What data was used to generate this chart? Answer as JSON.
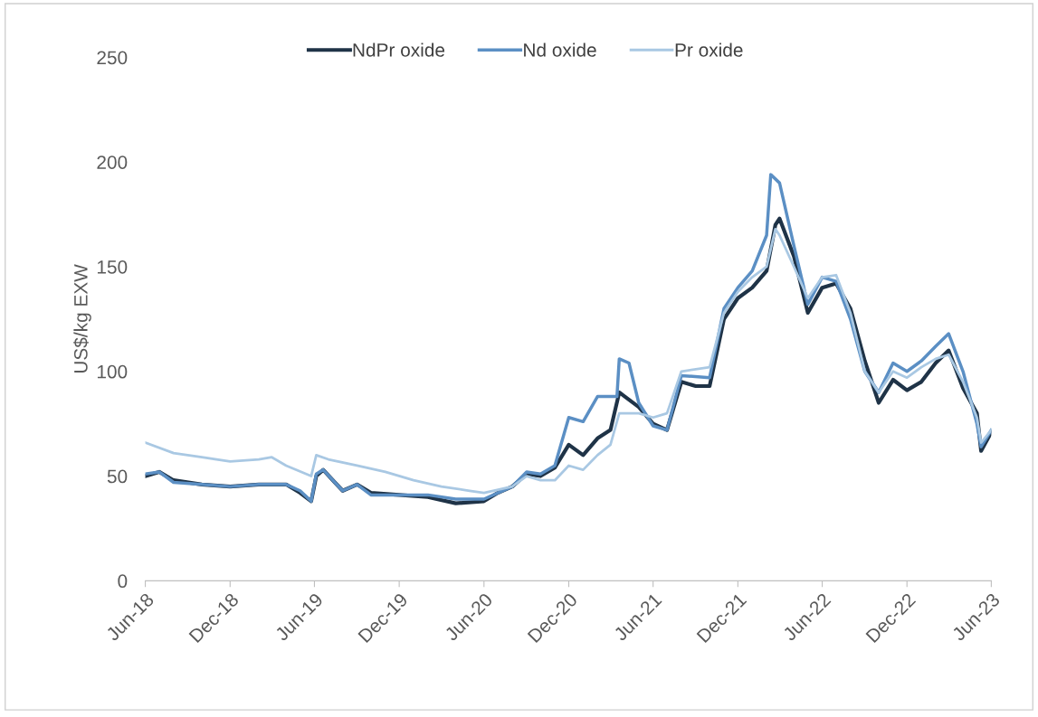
{
  "chart_data": {
    "type": "line",
    "ylabel": "US$/kg EXW",
    "xlim": [
      "2018-06",
      "2023-06"
    ],
    "xticks": [
      {
        "value": "2018-06",
        "label": "Jun-18"
      },
      {
        "value": "2018-12",
        "label": "Dec-18"
      },
      {
        "value": "2019-06",
        "label": "Jun-19"
      },
      {
        "value": "2019-12",
        "label": "Dec-19"
      },
      {
        "value": "2020-06",
        "label": "Jun-20"
      },
      {
        "value": "2020-12",
        "label": "Dec-20"
      },
      {
        "value": "2021-06",
        "label": "Jun-21"
      },
      {
        "value": "2021-12",
        "label": "Dec-21"
      },
      {
        "value": "2022-06",
        "label": "Jun-22"
      },
      {
        "value": "2022-12",
        "label": "Dec-22"
      },
      {
        "value": "2023-06",
        "label": "Jun-23"
      }
    ],
    "ylim": [
      0,
      250
    ],
    "yticks": [
      0,
      50,
      100,
      150,
      200,
      250
    ],
    "grid": false,
    "legend": "top",
    "line_style": "solid",
    "marker": "none",
    "series": [
      {
        "name": "NdPr oxide",
        "color": "#1f3347",
        "x": [
          "2018-06-01",
          "2018-07-01",
          "2018-08-01",
          "2018-10-01",
          "2018-12-01",
          "2019-02-01",
          "2019-04-01",
          "2019-05-01",
          "2019-05-25",
          "2019-06-05",
          "2019-06-20",
          "2019-07-15",
          "2019-08-01",
          "2019-09-01",
          "2019-10-01",
          "2019-12-01",
          "2020-02-01",
          "2020-04-01",
          "2020-06-01",
          "2020-07-01",
          "2020-08-01",
          "2020-09-01",
          "2020-10-01",
          "2020-11-01",
          "2020-12-01",
          "2021-01-01",
          "2021-02-01",
          "2021-03-01",
          "2021-03-20",
          "2021-04-01",
          "2021-05-01",
          "2021-06-01",
          "2021-07-01",
          "2021-08-01",
          "2021-09-01",
          "2021-10-01",
          "2021-11-01",
          "2021-12-01",
          "2022-01-01",
          "2022-02-01",
          "2022-02-20",
          "2022-03-01",
          "2022-04-01",
          "2022-05-01",
          "2022-06-01",
          "2022-07-01",
          "2022-08-01",
          "2022-09-01",
          "2022-10-01",
          "2022-11-01",
          "2022-12-01",
          "2023-01-01",
          "2023-02-01",
          "2023-03-01",
          "2023-04-01",
          "2023-05-01",
          "2023-05-10",
          "2023-06-01"
        ],
        "values": [
          50,
          52,
          48,
          46,
          45,
          46,
          46,
          42,
          38,
          50,
          53,
          47,
          43,
          46,
          42,
          41,
          40,
          37,
          38,
          42,
          45,
          51,
          50,
          54,
          65,
          60,
          68,
          72,
          90,
          88,
          83,
          75,
          72,
          95,
          93,
          93,
          125,
          135,
          140,
          148,
          170,
          173,
          155,
          128,
          140,
          142,
          130,
          105,
          85,
          96,
          91,
          95,
          104,
          110,
          92,
          80,
          62,
          71
        ]
      },
      {
        "name": "Nd oxide",
        "color": "#5b8fc4",
        "x": [
          "2018-06-01",
          "2018-07-01",
          "2018-08-01",
          "2018-10-01",
          "2018-12-01",
          "2019-02-01",
          "2019-04-01",
          "2019-05-01",
          "2019-05-25",
          "2019-06-05",
          "2019-06-20",
          "2019-07-15",
          "2019-08-01",
          "2019-09-01",
          "2019-10-01",
          "2019-12-01",
          "2020-02-01",
          "2020-04-01",
          "2020-06-01",
          "2020-07-01",
          "2020-08-01",
          "2020-09-01",
          "2020-10-01",
          "2020-11-01",
          "2020-12-01",
          "2021-01-01",
          "2021-02-01",
          "2021-03-15",
          "2021-03-20",
          "2021-04-10",
          "2021-05-01",
          "2021-06-01",
          "2021-07-01",
          "2021-08-01",
          "2021-10-01",
          "2021-11-01",
          "2021-12-01",
          "2022-01-01",
          "2022-02-01",
          "2022-02-10",
          "2022-03-01",
          "2022-04-01",
          "2022-05-01",
          "2022-06-01",
          "2022-07-01",
          "2022-08-01",
          "2022-09-01",
          "2022-10-01",
          "2022-11-01",
          "2022-12-01",
          "2023-01-01",
          "2023-02-01",
          "2023-03-01",
          "2023-04-01",
          "2023-05-01",
          "2023-05-10",
          "2023-06-01"
        ],
        "values": [
          51,
          52,
          47,
          46,
          45,
          46,
          46,
          43,
          38,
          51,
          53,
          47,
          43,
          46,
          41,
          41,
          41,
          39,
          39,
          42,
          45,
          52,
          51,
          55,
          78,
          76,
          88,
          88,
          106,
          104,
          85,
          74,
          72,
          98,
          97,
          130,
          140,
          148,
          165,
          194,
          190,
          160,
          132,
          145,
          143,
          125,
          100,
          90,
          104,
          100,
          105,
          112,
          118,
          100,
          75,
          64,
          72
        ]
      },
      {
        "name": "Pr oxide",
        "color": "#a9c8e3",
        "x": [
          "2018-06-01",
          "2018-08-01",
          "2018-10-01",
          "2018-12-01",
          "2019-02-01",
          "2019-03-01",
          "2019-04-01",
          "2019-05-25",
          "2019-06-05",
          "2019-07-01",
          "2019-09-01",
          "2019-11-01",
          "2020-01-01",
          "2020-03-01",
          "2020-05-01",
          "2020-06-01",
          "2020-08-01",
          "2020-09-01",
          "2020-10-01",
          "2020-11-01",
          "2020-12-01",
          "2021-01-01",
          "2021-02-01",
          "2021-03-01",
          "2021-03-20",
          "2021-05-01",
          "2021-06-01",
          "2021-07-01",
          "2021-08-01",
          "2021-10-01",
          "2021-11-01",
          "2021-12-01",
          "2022-01-01",
          "2022-02-01",
          "2022-02-20",
          "2022-03-01",
          "2022-04-01",
          "2022-05-01",
          "2022-06-01",
          "2022-07-01",
          "2022-08-01",
          "2022-09-01",
          "2022-10-01",
          "2022-11-01",
          "2022-12-01",
          "2023-01-01",
          "2023-02-01",
          "2023-03-01",
          "2023-04-01",
          "2023-05-01",
          "2023-05-10",
          "2023-06-01"
        ],
        "values": [
          66,
          61,
          59,
          57,
          58,
          59,
          55,
          50,
          60,
          58,
          55,
          52,
          48,
          45,
          43,
          42,
          45,
          50,
          48,
          48,
          55,
          53,
          60,
          65,
          80,
          80,
          78,
          80,
          100,
          102,
          128,
          138,
          145,
          150,
          168,
          165,
          150,
          135,
          145,
          146,
          128,
          100,
          90,
          100,
          97,
          102,
          106,
          108,
          95,
          78,
          66,
          72
        ]
      }
    ]
  }
}
